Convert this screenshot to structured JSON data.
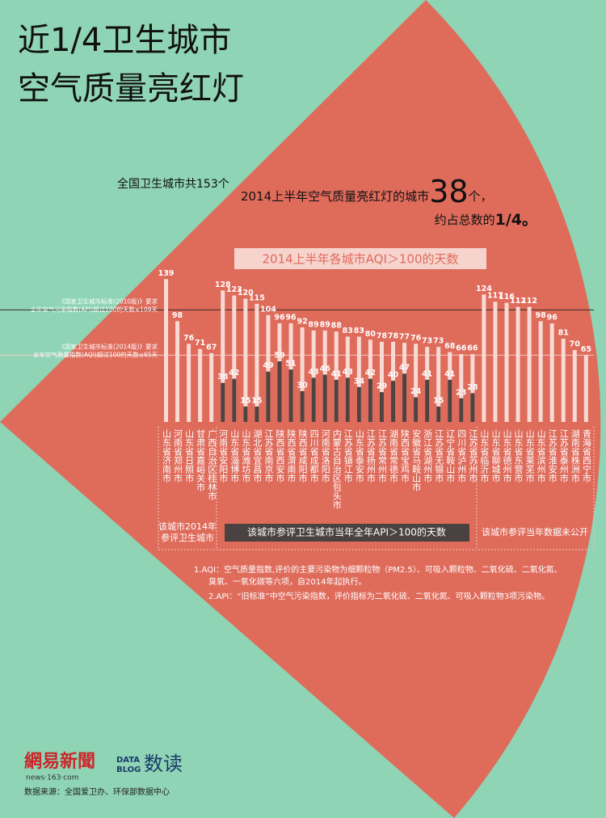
{
  "chart_data": {
    "type": "bar",
    "title_lines": [
      "近1/4卫生城市",
      "空气质量亮红灯"
    ],
    "total_note": "全国卫生城市共153个",
    "headline_prefix": "2014上半年空气质量亮红灯的城市",
    "headline_number": "38",
    "headline_suffix": "个，",
    "headline_line2_prefix": "约占总数的",
    "headline_line2_emphasis": "1/4。",
    "chart_title": "2014上半年各城市AQI＞100的天数",
    "categories": [
      "山东省济南市",
      "河南省郑州市",
      "山东省日照市",
      "甘肃省嘉峪关市",
      "广西自治区桂林市",
      "河南省安阳市",
      "山东省淄博市",
      "山东省潍坊市",
      "湖北省宜昌市",
      "江苏省南京市",
      "陕西省西安市",
      "陕西省渭南市",
      "陕西省咸阳市",
      "四川省成都市",
      "河南省洛阳市",
      "内蒙古自治区包头市",
      "江苏省镇江市",
      "山东省泰安市",
      "江苏省扬州市",
      "江苏省常州市",
      "湖南省常德市",
      "陕西省宝鸡市",
      "安徽省马鞍山市",
      "浙江省湖州市",
      "江苏省无锡市",
      "辽宁省鞍山市",
      "四川省泸州市",
      "江苏省苏州市",
      "山东省临沂市",
      "山东省聊城市",
      "山东省德州市",
      "山东省东营市",
      "山东省莱芜市",
      "山东省滨州市",
      "江苏省淮安市",
      "江苏省泰州市",
      "湖南省株洲市",
      "青海省西宁市"
    ],
    "series": [
      {
        "color": "#f7dad4",
        "values": [
          139,
          98,
          76,
          71,
          67,
          128,
          123,
          120,
          115,
          104,
          96,
          96,
          92,
          89,
          89,
          88,
          83,
          83,
          80,
          78,
          78,
          77,
          76,
          73,
          73,
          68,
          66,
          66,
          124,
          117,
          116,
          112,
          112,
          98,
          96,
          81,
          70,
          65
        ]
      },
      {
        "name": "该城市参评卫生城市当年全年API＞100的天数",
        "color": "#4e4341",
        "values": [
          null,
          null,
          null,
          null,
          null,
          38,
          42,
          15,
          15,
          49,
          59,
          51,
          30,
          43,
          46,
          41,
          43,
          34,
          42,
          29,
          40,
          47,
          24,
          41,
          15,
          41,
          23,
          28,
          null,
          null,
          null,
          null,
          null,
          null,
          null,
          null,
          null,
          null
        ]
      }
    ],
    "ylim": [
      0,
      140
    ],
    "reference_lines": [
      {
        "value": 109,
        "label_lines": [
          "《国家卫生城市标准(2010版)》要求",
          "全年空气污染指数(API)超过100的天数≤109天"
        ]
      },
      {
        "value": 65,
        "label_lines": [
          "《国家卫生城市标准(2014版)》要求",
          "全年空气质量指数(AQI)超过100的天数≤65天"
        ]
      }
    ],
    "group_labels": [
      [
        "该城市2014年",
        "参评卫生城市"
      ],
      "该城市参评当年数据未公开"
    ],
    "notes": [
      "1.AQI：空气质量指数,评价的主要污染物为细颗粒物（PM2.5）、可吸入颗粒物、二氧化硫、二氧化氮、",
      "臭氧、一氧化碳等六项，自2014年起执行。",
      "2.API：“旧标准”中空气污染指数，评价指标为二氧化硫、二氧化氮、可吸入颗粒物3项污染物。"
    ],
    "logo_netease": "網易新聞",
    "logo_netease_url": "news·163·com",
    "logo_datablog": [
      "DATA",
      "BLOG"
    ],
    "logo_shudu": "数读",
    "source": "数据来源：全国爱卫办、环保部数据中心"
  }
}
